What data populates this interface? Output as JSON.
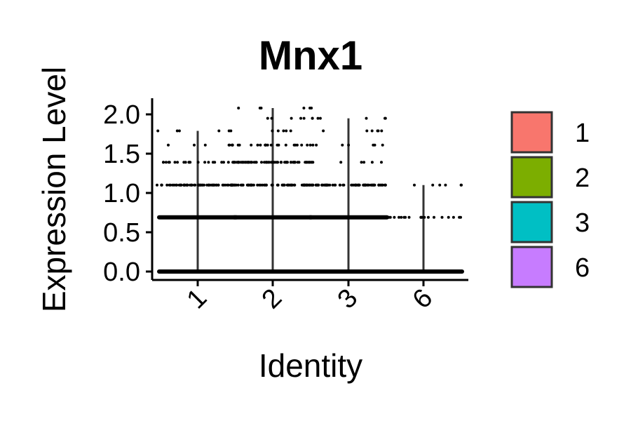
{
  "chart_data": {
    "type": "violin-jitter",
    "title": "Mnx1",
    "xlabel": "Identity",
    "ylabel": "Expression Level",
    "categories": [
      "1",
      "2",
      "3",
      "6"
    ],
    "ylim": [
      -0.09,
      2.2
    ],
    "yticks": [
      0.0,
      0.5,
      1.0,
      1.5,
      2.0
    ],
    "ytick_labels": [
      "0.0",
      "0.5",
      "1.0",
      "1.5",
      "2.0"
    ],
    "legend": {
      "position": "right",
      "entries": [
        {
          "label": "1",
          "color": "#F8766D"
        },
        {
          "label": "2",
          "color": "#7CAE00"
        },
        {
          "label": "3",
          "color": "#00BFC4"
        },
        {
          "label": "6",
          "color": "#C77CFF"
        }
      ]
    },
    "groups": [
      {
        "name": "1",
        "max": 1.79,
        "levels": [
          {
            "y": 0.0,
            "density": "dense"
          },
          {
            "y": 0.69,
            "density": "dense"
          },
          {
            "y": 1.1,
            "density": "medium"
          },
          {
            "y": 1.39,
            "density": "sparse"
          },
          {
            "y": 1.61,
            "density": "few"
          },
          {
            "y": 1.79,
            "density": "few"
          }
        ]
      },
      {
        "name": "2",
        "max": 2.08,
        "levels": [
          {
            "y": 0.0,
            "density": "dense"
          },
          {
            "y": 0.69,
            "density": "dense"
          },
          {
            "y": 1.1,
            "density": "medium"
          },
          {
            "y": 1.39,
            "density": "medium"
          },
          {
            "y": 1.61,
            "density": "sparse"
          },
          {
            "y": 1.79,
            "density": "few"
          },
          {
            "y": 1.95,
            "density": "few"
          },
          {
            "y": 2.08,
            "density": "few"
          }
        ]
      },
      {
        "name": "3",
        "max": 1.95,
        "levels": [
          {
            "y": 0.0,
            "density": "dense"
          },
          {
            "y": 0.69,
            "density": "dense"
          },
          {
            "y": 1.1,
            "density": "medium"
          },
          {
            "y": 1.39,
            "density": "few"
          },
          {
            "y": 1.61,
            "density": "few"
          },
          {
            "y": 1.79,
            "density": "few"
          },
          {
            "y": 1.95,
            "density": "few"
          }
        ]
      },
      {
        "name": "6",
        "max": 1.1,
        "levels": [
          {
            "y": 0.0,
            "density": "dense"
          },
          {
            "y": 0.69,
            "density": "sparse"
          },
          {
            "y": 1.1,
            "density": "few"
          }
        ]
      }
    ]
  }
}
